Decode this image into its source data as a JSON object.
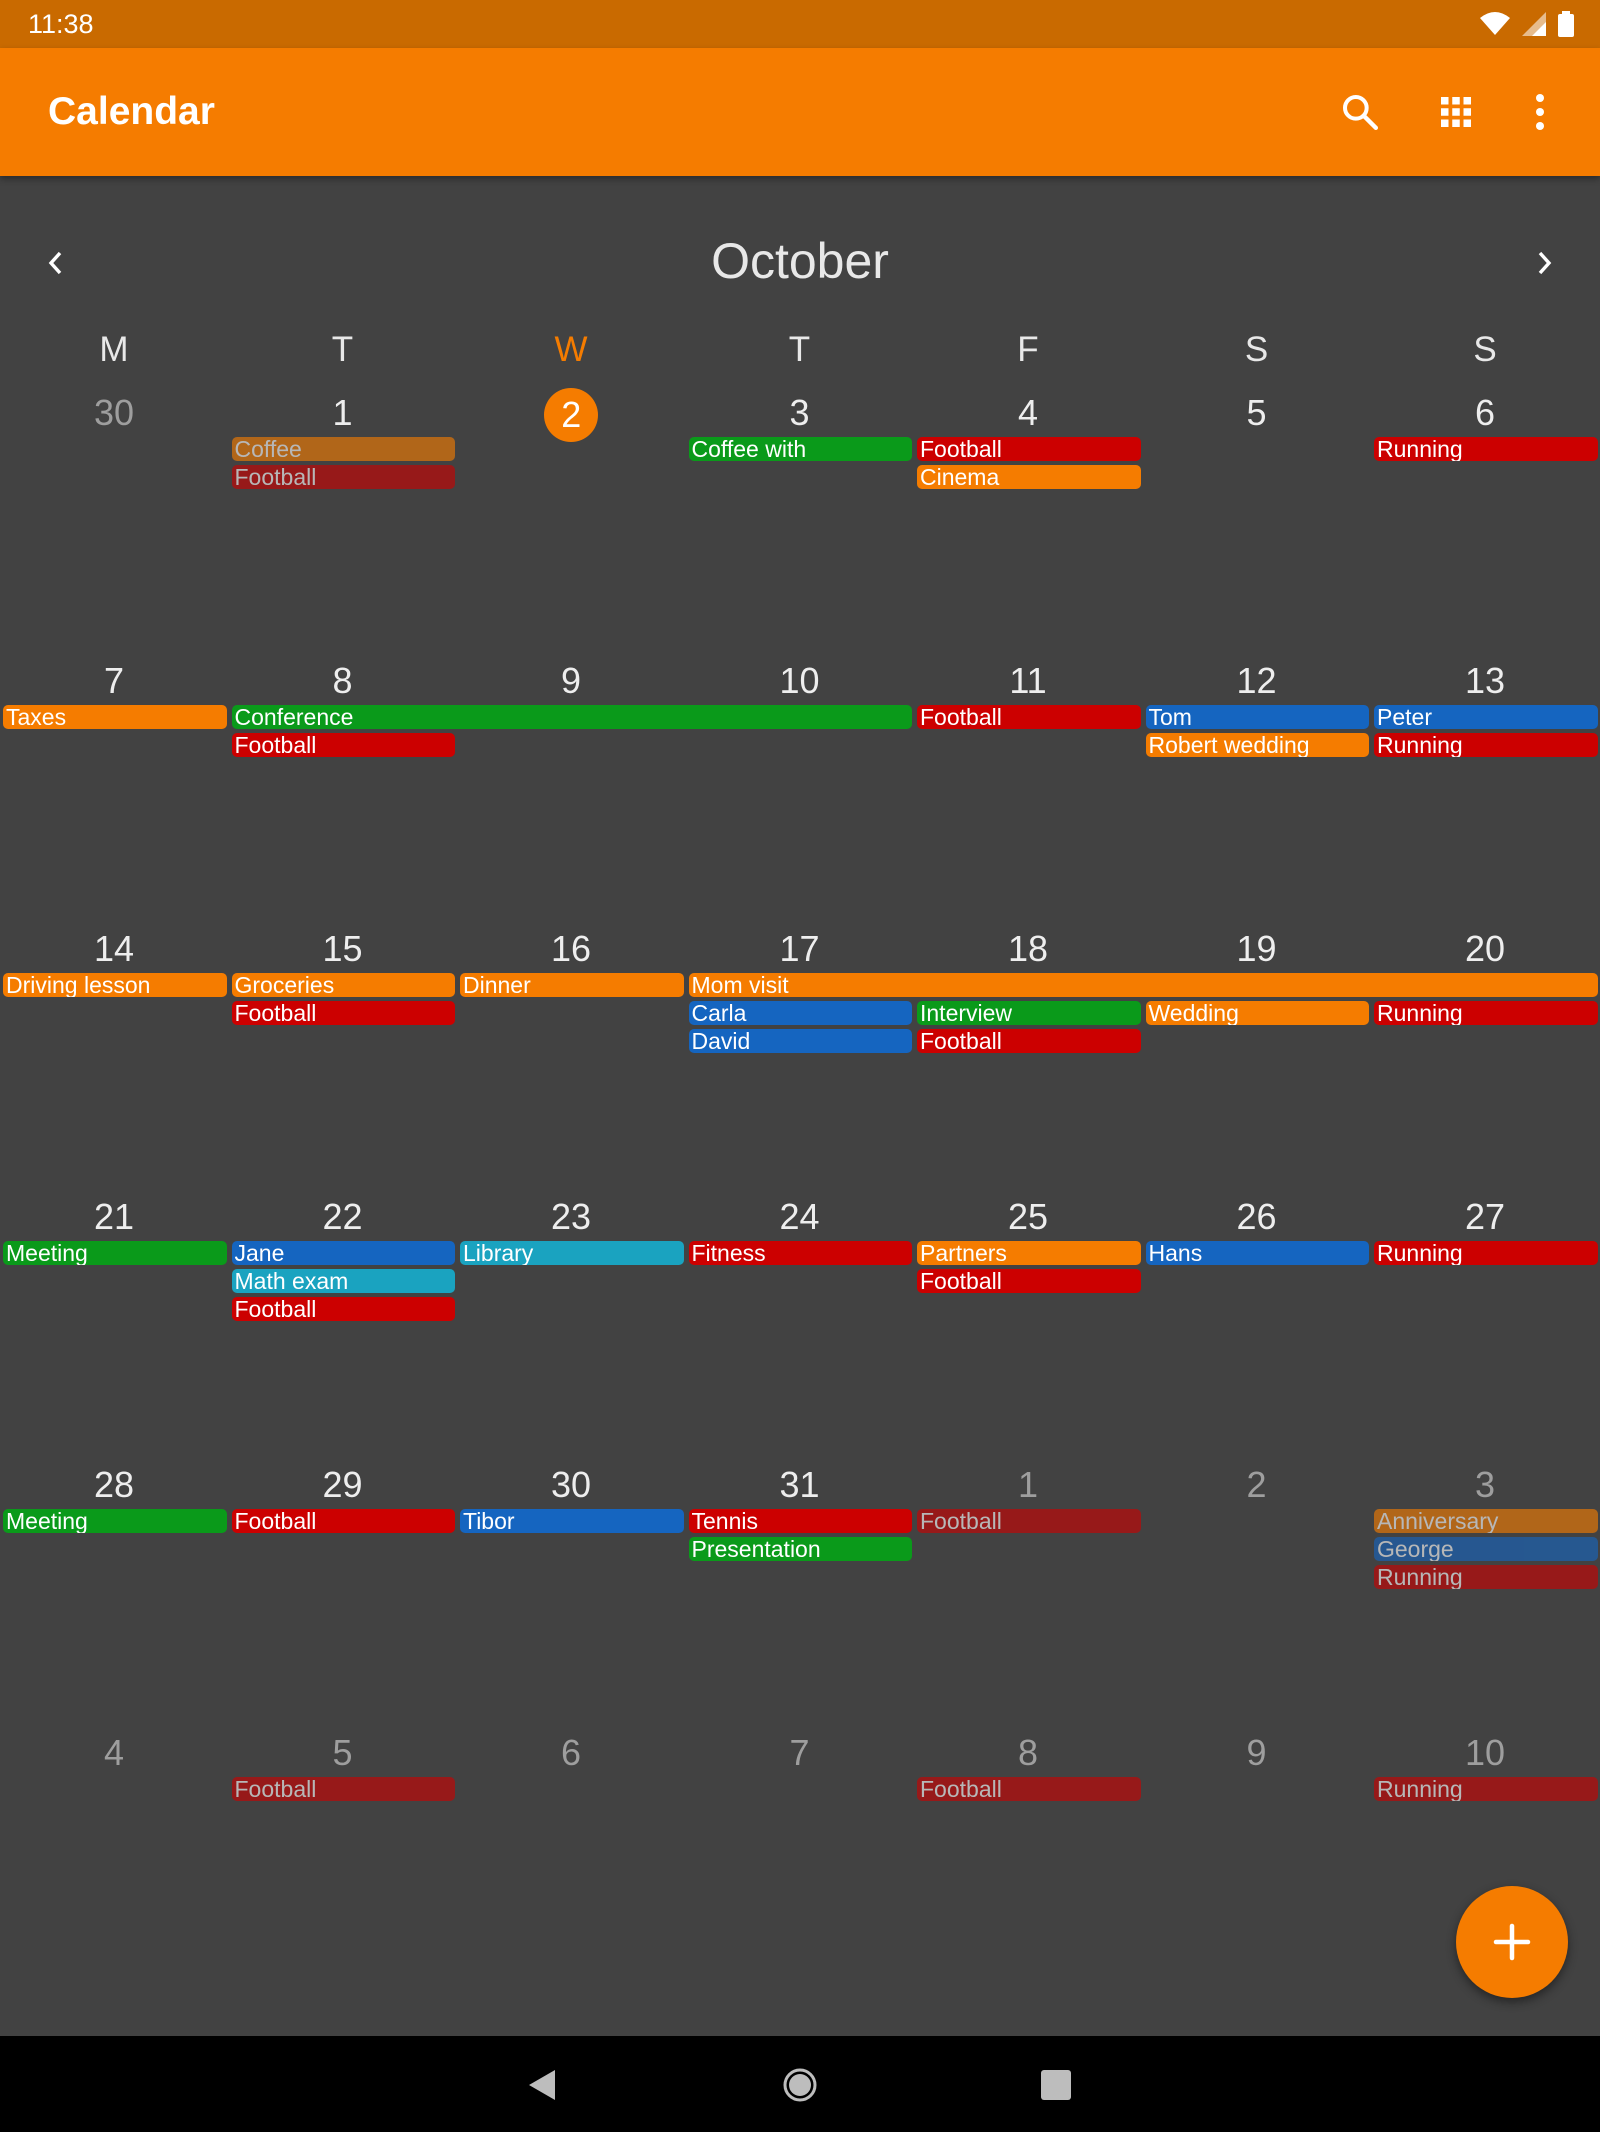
{
  "status_bar": {
    "time": "11:38"
  },
  "app_bar": {
    "title": "Calendar"
  },
  "month": {
    "title": "October"
  },
  "weekdays": [
    {
      "label": "M",
      "today": false
    },
    {
      "label": "T",
      "today": false
    },
    {
      "label": "W",
      "today": true
    },
    {
      "label": "T",
      "today": false
    },
    {
      "label": "F",
      "today": false
    },
    {
      "label": "S",
      "today": false
    },
    {
      "label": "S",
      "today": false
    }
  ],
  "colors": {
    "accent": "#f57c00",
    "orange": "#f57c00",
    "red": "#cc0000",
    "green": "#0a9a1a",
    "blue": "#1565c0",
    "cyan": "#1aa3c0"
  },
  "weeks": [
    {
      "days": [
        {
          "label": "30",
          "other": true
        },
        {
          "label": "1"
        },
        {
          "label": "2",
          "today": true
        },
        {
          "label": "3"
        },
        {
          "label": "4"
        },
        {
          "label": "5"
        },
        {
          "label": "6"
        }
      ],
      "events": [
        {
          "title": "Coffee",
          "start": 1,
          "span": 1,
          "row": 0,
          "color": "orange",
          "faded": true
        },
        {
          "title": "Football",
          "start": 1,
          "span": 1,
          "row": 1,
          "color": "red",
          "faded": true
        },
        {
          "title": "Coffee with",
          "start": 3,
          "span": 1,
          "row": 0,
          "color": "green"
        },
        {
          "title": "Football",
          "start": 4,
          "span": 1,
          "row": 0,
          "color": "red"
        },
        {
          "title": "Cinema",
          "start": 4,
          "span": 1,
          "row": 1,
          "color": "orange"
        },
        {
          "title": "Running",
          "start": 6,
          "span": 1,
          "row": 0,
          "color": "red"
        }
      ]
    },
    {
      "days": [
        {
          "label": "7"
        },
        {
          "label": "8"
        },
        {
          "label": "9"
        },
        {
          "label": "10"
        },
        {
          "label": "11"
        },
        {
          "label": "12"
        },
        {
          "label": "13"
        }
      ],
      "events": [
        {
          "title": "Taxes",
          "start": 0,
          "span": 1,
          "row": 0,
          "color": "orange"
        },
        {
          "title": "Conference",
          "start": 1,
          "span": 3,
          "row": 0,
          "color": "green"
        },
        {
          "title": "Football",
          "start": 1,
          "span": 1,
          "row": 1,
          "color": "red"
        },
        {
          "title": "Football",
          "start": 4,
          "span": 1,
          "row": 0,
          "color": "red"
        },
        {
          "title": "Tom",
          "start": 5,
          "span": 1,
          "row": 0,
          "color": "blue"
        },
        {
          "title": "Robert wedding",
          "start": 5,
          "span": 1,
          "row": 1,
          "color": "orange"
        },
        {
          "title": "Peter",
          "start": 6,
          "span": 1,
          "row": 0,
          "color": "blue"
        },
        {
          "title": "Running",
          "start": 6,
          "span": 1,
          "row": 1,
          "color": "red"
        }
      ]
    },
    {
      "days": [
        {
          "label": "14"
        },
        {
          "label": "15"
        },
        {
          "label": "16"
        },
        {
          "label": "17"
        },
        {
          "label": "18"
        },
        {
          "label": "19"
        },
        {
          "label": "20"
        }
      ],
      "events": [
        {
          "title": "Driving lesson",
          "start": 0,
          "span": 1,
          "row": 0,
          "color": "orange"
        },
        {
          "title": "Groceries",
          "start": 1,
          "span": 1,
          "row": 0,
          "color": "orange"
        },
        {
          "title": "Football",
          "start": 1,
          "span": 1,
          "row": 1,
          "color": "red"
        },
        {
          "title": "Dinner",
          "start": 2,
          "span": 1,
          "row": 0,
          "color": "orange"
        },
        {
          "title": "Mom visit",
          "start": 3,
          "span": 4,
          "row": 0,
          "color": "orange"
        },
        {
          "title": "Carla",
          "start": 3,
          "span": 1,
          "row": 1,
          "color": "blue"
        },
        {
          "title": "David",
          "start": 3,
          "span": 1,
          "row": 2,
          "color": "blue"
        },
        {
          "title": "Interview",
          "start": 4,
          "span": 1,
          "row": 1,
          "color": "green"
        },
        {
          "title": "Football",
          "start": 4,
          "span": 1,
          "row": 2,
          "color": "red"
        },
        {
          "title": "Wedding",
          "start": 5,
          "span": 1,
          "row": 1,
          "color": "orange"
        },
        {
          "title": "Running",
          "start": 6,
          "span": 1,
          "row": 1,
          "color": "red"
        }
      ]
    },
    {
      "days": [
        {
          "label": "21"
        },
        {
          "label": "22"
        },
        {
          "label": "23"
        },
        {
          "label": "24"
        },
        {
          "label": "25"
        },
        {
          "label": "26"
        },
        {
          "label": "27"
        }
      ],
      "events": [
        {
          "title": "Meeting",
          "start": 0,
          "span": 1,
          "row": 0,
          "color": "green"
        },
        {
          "title": "Jane",
          "start": 1,
          "span": 1,
          "row": 0,
          "color": "blue"
        },
        {
          "title": "Math exam",
          "start": 1,
          "span": 1,
          "row": 1,
          "color": "cyan"
        },
        {
          "title": "Football",
          "start": 1,
          "span": 1,
          "row": 2,
          "color": "red"
        },
        {
          "title": "Library",
          "start": 2,
          "span": 1,
          "row": 0,
          "color": "cyan"
        },
        {
          "title": "Fitness",
          "start": 3,
          "span": 1,
          "row": 0,
          "color": "red"
        },
        {
          "title": "Partners",
          "start": 4,
          "span": 1,
          "row": 0,
          "color": "orange"
        },
        {
          "title": "Football",
          "start": 4,
          "span": 1,
          "row": 1,
          "color": "red"
        },
        {
          "title": "Hans",
          "start": 5,
          "span": 1,
          "row": 0,
          "color": "blue"
        },
        {
          "title": "Running",
          "start": 6,
          "span": 1,
          "row": 0,
          "color": "red"
        }
      ]
    },
    {
      "days": [
        {
          "label": "28"
        },
        {
          "label": "29"
        },
        {
          "label": "30"
        },
        {
          "label": "31"
        },
        {
          "label": "1",
          "other": true
        },
        {
          "label": "2",
          "other": true
        },
        {
          "label": "3",
          "other": true
        }
      ],
      "events": [
        {
          "title": "Meeting",
          "start": 0,
          "span": 1,
          "row": 0,
          "color": "green"
        },
        {
          "title": "Football",
          "start": 1,
          "span": 1,
          "row": 0,
          "color": "red"
        },
        {
          "title": "Tibor",
          "start": 2,
          "span": 1,
          "row": 0,
          "color": "blue"
        },
        {
          "title": "Tennis",
          "start": 3,
          "span": 1,
          "row": 0,
          "color": "red"
        },
        {
          "title": "Presentation",
          "start": 3,
          "span": 1,
          "row": 1,
          "color": "green"
        },
        {
          "title": "Football",
          "start": 4,
          "span": 1,
          "row": 0,
          "color": "red",
          "faded": true
        },
        {
          "title": "Anniversary",
          "start": 6,
          "span": 1,
          "row": 0,
          "color": "orange",
          "faded": true
        },
        {
          "title": "George",
          "start": 6,
          "span": 1,
          "row": 1,
          "color": "blue",
          "faded": true
        },
        {
          "title": "Running",
          "start": 6,
          "span": 1,
          "row": 2,
          "color": "red",
          "faded": true
        }
      ]
    },
    {
      "days": [
        {
          "label": "4",
          "other": true
        },
        {
          "label": "5",
          "other": true
        },
        {
          "label": "6",
          "other": true
        },
        {
          "label": "7",
          "other": true
        },
        {
          "label": "8",
          "other": true
        },
        {
          "label": "9",
          "other": true
        },
        {
          "label": "10",
          "other": true
        }
      ],
      "events": [
        {
          "title": "Football",
          "start": 1,
          "span": 1,
          "row": 0,
          "color": "red",
          "faded": true
        },
        {
          "title": "Football",
          "start": 4,
          "span": 1,
          "row": 0,
          "color": "red",
          "faded": true
        },
        {
          "title": "Running",
          "start": 6,
          "span": 1,
          "row": 0,
          "color": "red",
          "faded": true
        }
      ]
    }
  ],
  "icons": {
    "search": "search-icon",
    "grid": "view-grid-icon",
    "more": "more-vert-icon",
    "prev": "chevron-left-icon",
    "next": "chevron-right-icon",
    "add": "add-icon"
  }
}
